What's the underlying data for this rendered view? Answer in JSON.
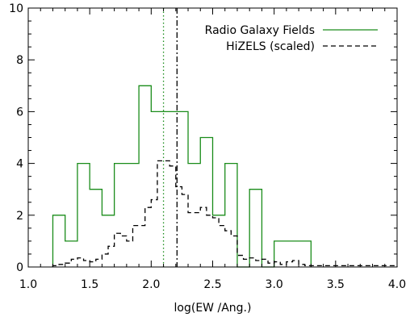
{
  "chart_data": {
    "type": "histogram",
    "xlabel": "log(EW /Ang.)",
    "ylabel": "",
    "xlim": [
      1.0,
      4.0
    ],
    "ylim": [
      0,
      10
    ],
    "xticks": [
      "1.0",
      "1.5",
      "2.0",
      "2.5",
      "3.0",
      "3.5",
      "4.0"
    ],
    "yticks": [
      "0",
      "2",
      "4",
      "6",
      "8",
      "10"
    ],
    "bin_width": 0.1,
    "legend": {
      "placement": "top-right"
    },
    "series": [
      {
        "name": "Radio Galaxy Fields",
        "color": "#1a8c1a",
        "linestyle": "solid",
        "bin_edges": [
          1.2,
          1.3,
          1.4,
          1.5,
          1.6,
          1.7,
          1.8,
          1.9,
          2.0,
          2.1,
          2.2,
          2.3,
          2.4,
          2.5,
          2.6,
          2.7,
          2.8,
          2.9,
          3.0,
          3.1,
          3.2,
          3.3
        ],
        "values": [
          2,
          1,
          4,
          3,
          2,
          4,
          4,
          7,
          6,
          6,
          6,
          4,
          5,
          2,
          4,
          0,
          3,
          0,
          1,
          1,
          1
        ]
      },
      {
        "name": "HiZELS (scaled)",
        "color": "#000000",
        "linestyle": "dashed",
        "bin_edges": [
          1.2,
          1.25,
          1.3,
          1.35,
          1.4,
          1.45,
          1.5,
          1.55,
          1.6,
          1.65,
          1.7,
          1.75,
          1.8,
          1.85,
          1.9,
          1.95,
          2.0,
          2.05,
          2.1,
          2.15,
          2.2,
          2.25,
          2.3,
          2.35,
          2.4,
          2.45,
          2.5,
          2.55,
          2.6,
          2.65,
          2.7,
          2.75,
          2.8,
          2.85,
          2.9,
          2.95,
          3.0,
          3.05,
          3.1,
          3.15,
          3.2,
          3.25,
          3.3,
          4.0
        ],
        "values": [
          0.05,
          0.1,
          0.15,
          0.3,
          0.35,
          0.25,
          0.2,
          0.3,
          0.5,
          0.8,
          1.3,
          1.2,
          1.0,
          1.6,
          1.6,
          2.3,
          2.6,
          4.1,
          4.1,
          3.9,
          3.1,
          2.8,
          2.1,
          2.1,
          2.3,
          2.0,
          1.9,
          1.6,
          1.4,
          1.2,
          0.45,
          0.3,
          0.35,
          0.25,
          0.3,
          0.15,
          0.2,
          0.1,
          0.2,
          0.25,
          0.1,
          0.05,
          0.05
        ]
      }
    ],
    "vertical_lines": [
      {
        "x": 2.1,
        "color": "#1a8c1a",
        "linestyle": "dotted"
      },
      {
        "x": 2.21,
        "color": "#000000",
        "linestyle": "dash-dot"
      }
    ]
  }
}
